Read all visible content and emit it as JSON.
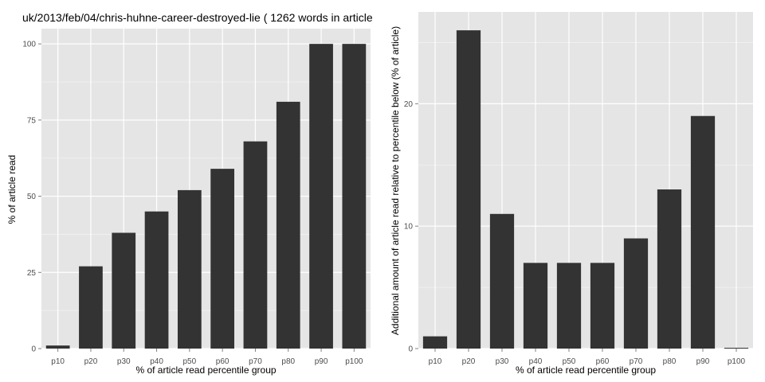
{
  "title": "uk/2013/feb/04/chris-huhne-career-destroyed-lie ( 1262 words in article",
  "colors": {
    "panel": "#e5e5e5",
    "grid_major": "#ffffff",
    "grid_minor": "#f2f2f2",
    "bar": "#333333",
    "tick_text": "#4d4d4d"
  },
  "chart_data": [
    {
      "type": "bar",
      "categories": [
        "p10",
        "p20",
        "p30",
        "p40",
        "p50",
        "p60",
        "p70",
        "p80",
        "p90",
        "p100"
      ],
      "values": [
        1,
        27,
        38,
        45,
        52,
        59,
        68,
        81,
        100,
        100
      ],
      "ylim": [
        0,
        105
      ],
      "yticks": [
        0,
        25,
        50,
        75,
        100
      ],
      "xlabel": "% of article read percentile group",
      "ylabel": "% of article read",
      "grid": true
    },
    {
      "type": "bar",
      "categories": [
        "p10",
        "p20",
        "p30",
        "p40",
        "p50",
        "p60",
        "p70",
        "p80",
        "p90",
        "p100"
      ],
      "values": [
        1,
        26,
        11,
        7,
        7,
        7,
        9,
        13,
        19,
        0
      ],
      "ylim": [
        0,
        27.5
      ],
      "yticks": [
        0,
        10,
        20
      ],
      "xlabel": "% of article read percentile group",
      "ylabel": "Additional amount of article read relative to percentile below (% of article)",
      "grid": true
    }
  ]
}
